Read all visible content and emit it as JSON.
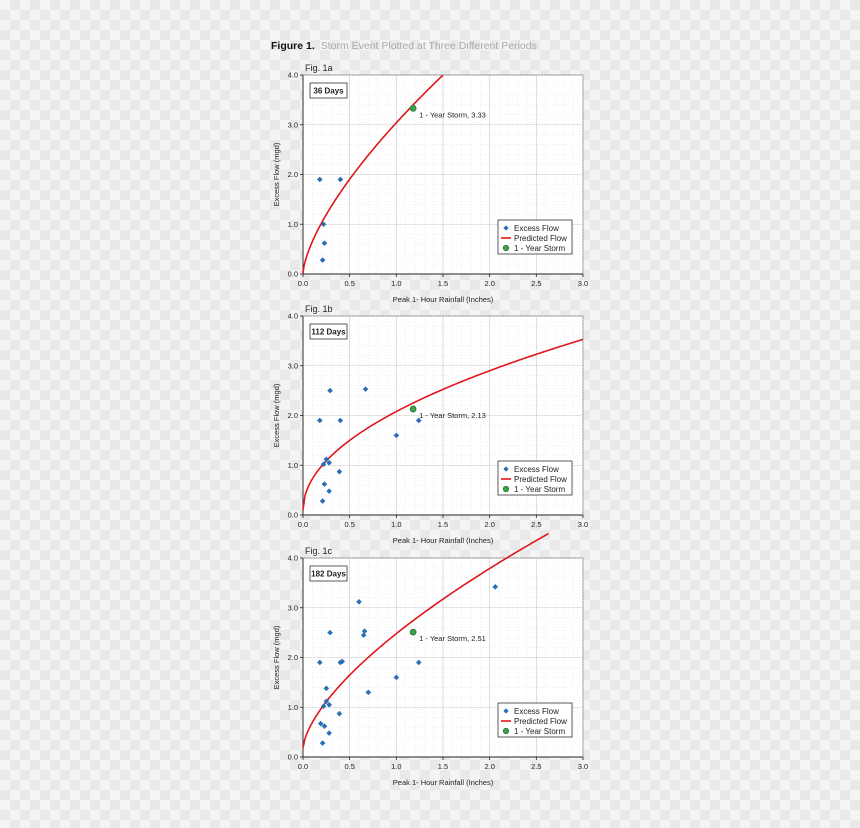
{
  "figure": {
    "label": "Figure 1.",
    "caption": "Storm Event Plotted at Three Different Periods"
  },
  "colors": {
    "scatter": "#2a6fb5",
    "curve": "#e0161b",
    "storm": "#3fa34d",
    "storm_edge": "#1e6b2a",
    "grid": "#c9c9c9"
  },
  "chart_data": [
    {
      "type": "scatter",
      "panel_label": "Fig. 1a",
      "period_label": "36 Days",
      "xlabel": "Peak 1- Hour Rainfall (Inches)",
      "ylabel": "Excess Flow (mgd)",
      "xlim": [
        0,
        3.0
      ],
      "ylim": [
        0,
        4.0
      ],
      "xticks": [
        "0.0",
        "0.5",
        "1.0",
        "1.5",
        "2.0",
        "2.5",
        "3.0"
      ],
      "yticks": [
        "0.0",
        "1.0",
        "2.0",
        "3.0",
        "4.0"
      ],
      "grid": true,
      "legend_position": "bottom-right",
      "legend": [
        "Excess Flow",
        "Predicted Flow",
        "1 - Year Storm"
      ],
      "series": [
        {
          "name": "Excess Flow",
          "points": [
            {
              "x": 0.18,
              "y": 1.9
            },
            {
              "x": 0.4,
              "y": 1.9
            },
            {
              "x": 0.22,
              "y": 1.0
            },
            {
              "x": 0.23,
              "y": 0.62
            },
            {
              "x": 0.21,
              "y": 0.28
            }
          ]
        },
        {
          "name": "Predicted Flow",
          "curve": {
            "a": 0.02,
            "b": 3.02,
            "p": 0.68,
            "x_end": 1.5
          }
        },
        {
          "name": "1 - Year Storm",
          "point": {
            "x": 1.18,
            "y": 3.33
          },
          "annotation": "1 - Year Storm, 3.33"
        }
      ]
    },
    {
      "type": "scatter",
      "panel_label": "Fig. 1b",
      "period_label": "112 Days",
      "xlabel": "Peak 1- Hour Rainfall (Inches)",
      "ylabel": "Excess Flow (mgd)",
      "xlim": [
        0,
        3.0
      ],
      "ylim": [
        0,
        4.0
      ],
      "xticks": [
        "0.0",
        "0.5",
        "1.0",
        "1.5",
        "2.0",
        "2.5",
        "3.0"
      ],
      "yticks": [
        "0.0",
        "1.0",
        "2.0",
        "3.0",
        "4.0"
      ],
      "grid": true,
      "legend_position": "bottom-right",
      "legend": [
        "Excess Flow",
        "Predicted Flow",
        "1 - Year Storm"
      ],
      "series": [
        {
          "name": "Excess Flow",
          "points": [
            {
              "x": 0.18,
              "y": 1.9
            },
            {
              "x": 0.29,
              "y": 2.5
            },
            {
              "x": 0.67,
              "y": 2.53
            },
            {
              "x": 0.4,
              "y": 1.9
            },
            {
              "x": 1.0,
              "y": 1.6
            },
            {
              "x": 1.24,
              "y": 1.9
            },
            {
              "x": 0.25,
              "y": 1.12
            },
            {
              "x": 0.22,
              "y": 1.02
            },
            {
              "x": 0.28,
              "y": 1.05
            },
            {
              "x": 0.39,
              "y": 0.87
            },
            {
              "x": 0.23,
              "y": 0.62
            },
            {
              "x": 0.28,
              "y": 0.48
            },
            {
              "x": 0.21,
              "y": 0.28
            }
          ]
        },
        {
          "name": "Predicted Flow",
          "curve": {
            "a": 0.1,
            "b": 1.98,
            "p": 0.5,
            "x_end": 3.0
          }
        },
        {
          "name": "1 - Year Storm",
          "point": {
            "x": 1.18,
            "y": 2.13
          },
          "annotation": "1 - Year Storm, 2.13"
        }
      ]
    },
    {
      "type": "scatter",
      "panel_label": "Fig. 1c",
      "period_label": "182 Days",
      "xlabel": "Peak 1- Hour Rainfall (Inches)",
      "ylabel": "Excess Flow (mgd)",
      "xlim": [
        0,
        3.0
      ],
      "ylim": [
        0,
        4.0
      ],
      "xticks": [
        "0.0",
        "0.5",
        "1.0",
        "1.5",
        "2.0",
        "2.5",
        "3.0"
      ],
      "yticks": [
        "0.0",
        "1.0",
        "2.0",
        "3.0",
        "4.0"
      ],
      "grid": true,
      "legend_position": "bottom-right",
      "legend": [
        "Excess Flow",
        "Predicted Flow",
        "1 - Year Storm"
      ],
      "series": [
        {
          "name": "Excess Flow",
          "points": [
            {
              "x": 0.6,
              "y": 3.12
            },
            {
              "x": 2.06,
              "y": 3.42
            },
            {
              "x": 0.29,
              "y": 2.5
            },
            {
              "x": 0.66,
              "y": 2.53
            },
            {
              "x": 0.65,
              "y": 2.45
            },
            {
              "x": 0.18,
              "y": 1.9
            },
            {
              "x": 0.4,
              "y": 1.9
            },
            {
              "x": 0.42,
              "y": 1.92
            },
            {
              "x": 1.24,
              "y": 1.9
            },
            {
              "x": 1.0,
              "y": 1.6
            },
            {
              "x": 0.7,
              "y": 1.3
            },
            {
              "x": 0.25,
              "y": 1.38
            },
            {
              "x": 0.25,
              "y": 1.12
            },
            {
              "x": 0.22,
              "y": 1.02
            },
            {
              "x": 0.28,
              "y": 1.05
            },
            {
              "x": 0.39,
              "y": 0.87
            },
            {
              "x": 0.19,
              "y": 0.67
            },
            {
              "x": 0.23,
              "y": 0.62
            },
            {
              "x": 0.28,
              "y": 0.48
            },
            {
              "x": 0.21,
              "y": 0.28
            }
          ]
        },
        {
          "name": "Predicted Flow",
          "curve": {
            "a": 0.18,
            "b": 2.3,
            "p": 0.65,
            "x_end": 2.63
          }
        },
        {
          "name": "1 - Year Storm",
          "point": {
            "x": 1.18,
            "y": 2.51
          },
          "annotation": "1 - Year Storm, 2.51"
        }
      ]
    }
  ]
}
